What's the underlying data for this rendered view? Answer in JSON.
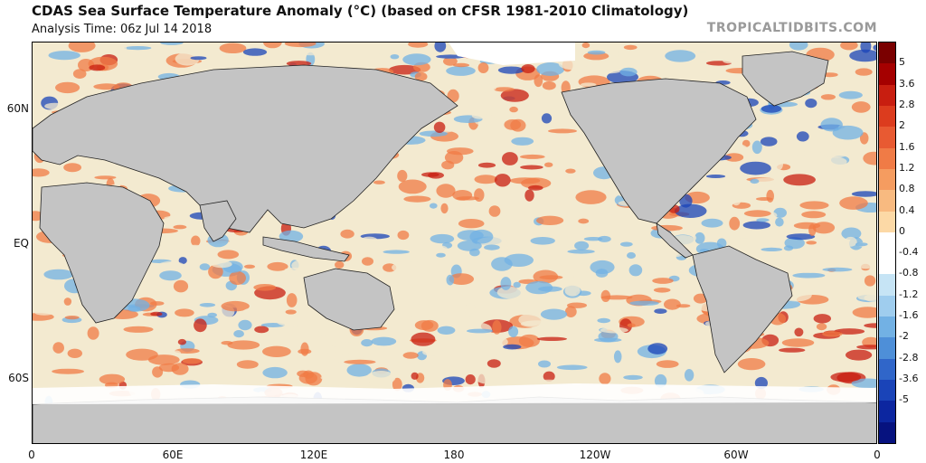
{
  "header": {
    "title": "CDAS Sea Surface Temperature Anomaly (°C) (based on CFSR 1981-2010 Climatology)",
    "subtitle": "Analysis Time: 06z Jul 14 2018",
    "brand": "TROPICALTIDBITS.COM"
  },
  "axes": {
    "lat_labels": [
      "60N",
      "EQ",
      "60S"
    ],
    "lon_labels": [
      "0",
      "60E",
      "120E",
      "180",
      "120W",
      "60W",
      "0"
    ]
  },
  "colorbar": {
    "labels": [
      "5",
      "3.6",
      "2.8",
      "2",
      "1.6",
      "1.2",
      "0.8",
      "0.4",
      "0",
      "-0.4",
      "-0.8",
      "-1.2",
      "-1.6",
      "-2",
      "-2.8",
      "-3.6",
      "-5"
    ],
    "colors": [
      "#7a0000",
      "#a50000",
      "#c81e10",
      "#dc3c1e",
      "#e85a32",
      "#f07b46",
      "#f59c60",
      "#f8ba80",
      "#fcd9a6",
      "#ffffff",
      "#ffffff",
      "#c6e4f5",
      "#9fcdee",
      "#72b1e4",
      "#4e8fd8",
      "#3066c9",
      "#1a44b8",
      "#0c26a0",
      "#06127f"
    ]
  },
  "palette": {
    "land": "#c4c4c4",
    "ice": "#ffffff",
    "ocean_neutral": "#f3ead0",
    "warm": "#f07b46",
    "strong_warm": "#c81e10",
    "cool": "#72b1e4",
    "strong_cool": "#1a44b8"
  }
}
